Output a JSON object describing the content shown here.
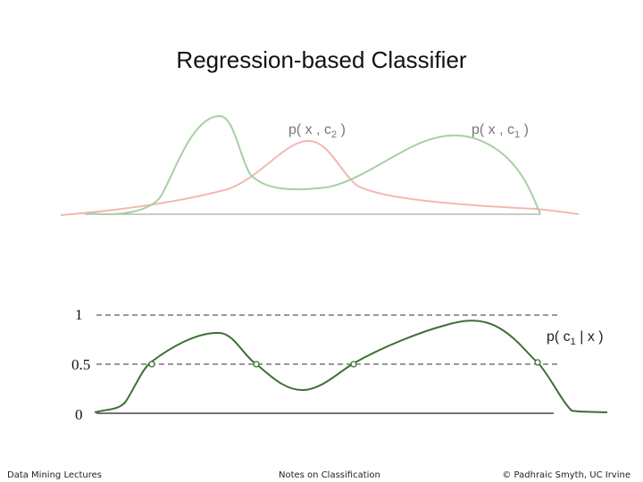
{
  "slide": {
    "title": "Regression-based Classifier"
  },
  "top_panel": {
    "label_c2": {
      "prefix": "p( x , c",
      "subscript": "2",
      "suffix": " )"
    },
    "label_c1": {
      "prefix": "p( x , c",
      "subscript": "1",
      "suffix": " )"
    }
  },
  "bottom_panel": {
    "tick_1": "1",
    "tick_05": "0.5",
    "tick_0": "0",
    "posterior_label": {
      "prefix": "p( c",
      "subscript": "1",
      "suffix": " | x )"
    }
  },
  "footer": {
    "left": "Data Mining Lectures",
    "center": "Notes on Classification",
    "right": "© Padhraic Smyth, UC Irvine"
  },
  "colors": {
    "green_density": "#a8cfa3",
    "red_density": "#f2b8b2",
    "posterior": "#3d6e35",
    "baseline": "#aaaaaa"
  }
}
